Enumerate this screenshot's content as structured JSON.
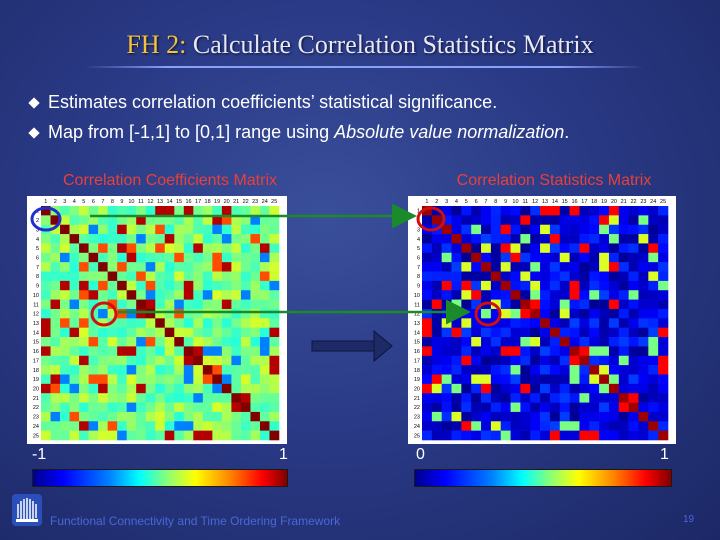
{
  "slide": {
    "title_prefix": "FH 2:",
    "title_main": "Calculate Correlation Statistics Matrix",
    "bullets": [
      {
        "text_before": "Estimates correlation coefficients’ statistical significance.",
        "italic": "",
        "text_after": ""
      },
      {
        "text_before": "Map from [-1,1] to [0,1] range using ",
        "italic": "Absolute value normalization",
        "text_after": "."
      }
    ],
    "left_panel": {
      "title": "Correlation Coefficients Matrix",
      "colorbar_min": "-1",
      "colorbar_max": "1"
    },
    "right_panel": {
      "title": "Correlation Statistics Matrix",
      "colorbar_min": "0",
      "colorbar_max": "1"
    },
    "footer": "Functional Connectivity and Time Ordering Framework",
    "page_number": "19",
    "matrix_labels": [
      "1",
      "2",
      "3",
      "4",
      "5",
      "6",
      "7",
      "8",
      "9",
      "10",
      "11",
      "12",
      "13",
      "14",
      "15",
      "16",
      "17",
      "18",
      "19",
      "20",
      "21",
      "22",
      "23",
      "24",
      "25"
    ],
    "colors": {
      "title_highlight": "#f2c23a",
      "panel_title": "#e8403a",
      "arrow_green": "#1a8a2a",
      "circle_blue": "#1f2fd0",
      "circle_red": "#d01010"
    }
  }
}
